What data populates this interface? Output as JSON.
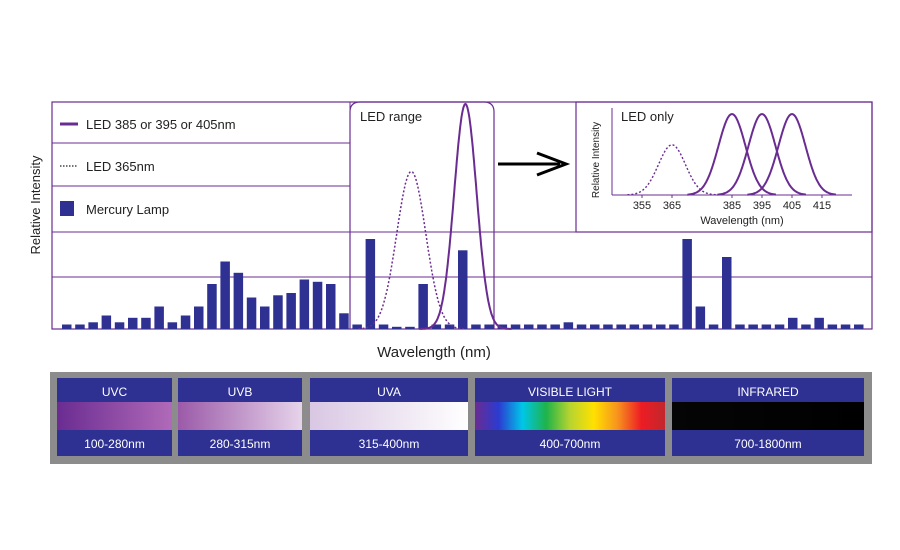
{
  "colors": {
    "frame": "#6a2c91",
    "led_curve": "#6a2c91",
    "mercury_bar": "#2e3192",
    "band_header": "#2e3192",
    "band_outer": "#8c8c8c",
    "text": "#222222"
  },
  "legend": {
    "led_main": "LED 385 or 395 or 405nm",
    "led_365": "LED 365nm",
    "mercury": "Mercury Lamp"
  },
  "chart_data": [
    {
      "type": "bar",
      "title": "",
      "xlabel": "Wavelength (nm)",
      "ylabel": "Relative Intensity",
      "grid": true,
      "annotation": "LED range",
      "series": [
        {
          "name": "Mercury Lamp",
          "kind": "bar",
          "values": [
            0.02,
            0.02,
            0.03,
            0.06,
            0.03,
            0.05,
            0.05,
            0.1,
            0.03,
            0.06,
            0.1,
            0.2,
            0.3,
            0.25,
            0.14,
            0.1,
            0.15,
            0.16,
            0.22,
            0.21,
            0.2,
            0.07,
            0.02,
            0.4,
            0.02,
            0.01,
            0.01,
            0.2,
            0.02,
            0.02,
            0.35,
            0.02,
            0.02,
            0.02,
            0.02,
            0.02,
            0.02,
            0.02,
            0.03,
            0.02,
            0.02,
            0.02,
            0.02,
            0.02,
            0.02,
            0.02,
            0.02,
            0.4,
            0.1,
            0.02,
            0.32,
            0.02,
            0.02,
            0.02,
            0.02,
            0.05,
            0.02,
            0.05,
            0.02,
            0.02,
            0.02
          ]
        },
        {
          "name": "LED 365nm",
          "kind": "line-dotted",
          "peak_bar_index": 26.1,
          "sigma_bars": 1.1,
          "peak_value": 0.7
        },
        {
          "name": "LED 385 or 395 or 405nm",
          "kind": "line",
          "peak_bar_index": 30.2,
          "sigma_bars": 0.85,
          "peak_value": 1.0
        }
      ],
      "led_range_bars": [
        23.6,
        33.1
      ]
    },
    {
      "type": "line",
      "title": "LED only",
      "xlabel": "Wavelength (nm)",
      "ylabel": "Relative Intensity",
      "xlim": [
        345,
        425
      ],
      "ylim": [
        0,
        1.05
      ],
      "x_ticks": [
        "355",
        "365",
        "385",
        "395",
        "405",
        "415"
      ],
      "x_tick_values": [
        355,
        365,
        385,
        395,
        405,
        415
      ],
      "series": [
        {
          "name": "365",
          "center": 365,
          "sigma": 4.5,
          "peak": 0.62,
          "style": "dotted"
        },
        {
          "name": "385",
          "center": 385,
          "sigma": 4.5,
          "peak": 1.0,
          "style": "solid"
        },
        {
          "name": "395",
          "center": 395,
          "sigma": 4.5,
          "peak": 1.0,
          "style": "solid"
        },
        {
          "name": "405",
          "center": 405,
          "sigma": 4.5,
          "peak": 1.0,
          "style": "solid"
        }
      ]
    }
  ],
  "spectrum_bands": [
    {
      "name": "UVC",
      "range": "100-280nm",
      "gradient": [
        "#6a2c91",
        "#b06ab8"
      ]
    },
    {
      "name": "UVB",
      "range": "280-315nm",
      "gradient": [
        "#9b5aa8",
        "#e6d3ea"
      ]
    },
    {
      "name": "UVA",
      "range": "315-400nm",
      "gradient": [
        "#d9c7e3",
        "#ffffff"
      ]
    },
    {
      "name": "VISIBLE LIGHT",
      "range": "400-700nm",
      "gradient": [
        "#6a2c91",
        "#2b3bd1",
        "#00c6e8",
        "#1fb34a",
        "#b8d430",
        "#ffe100",
        "#f7931e",
        "#ed1c24",
        "#c1272d"
      ]
    },
    {
      "name": "INFRARED",
      "range": "700-1800nm",
      "gradient": [
        "#050505",
        "#000000"
      ]
    }
  ]
}
